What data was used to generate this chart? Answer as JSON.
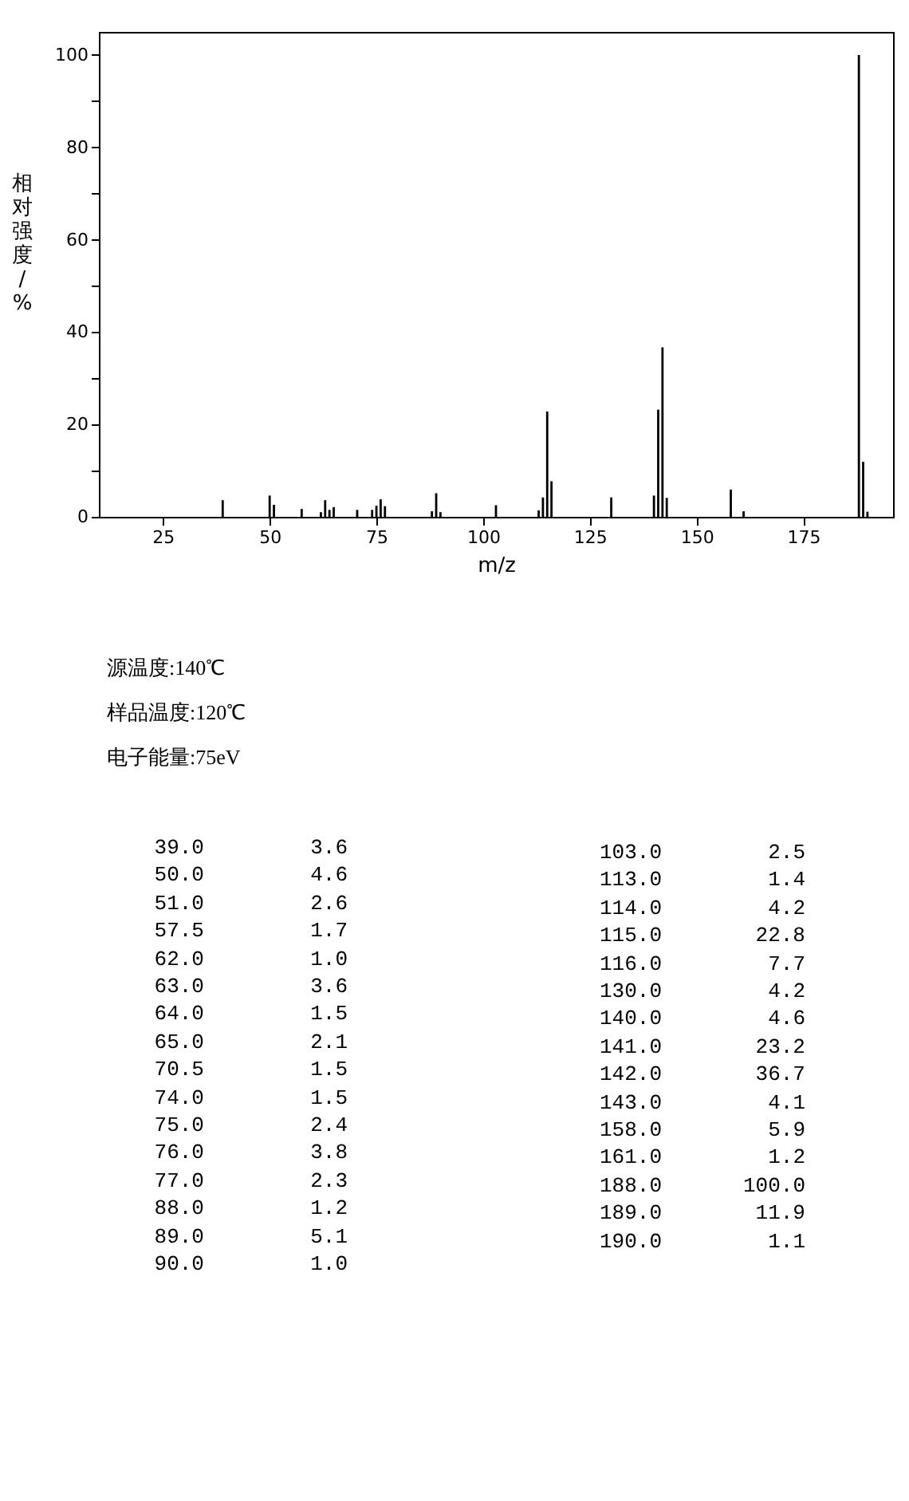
{
  "chart_data": [
    {
      "type": "bar",
      "xlabel": "m/z",
      "ylabel": "相对强度/%",
      "color": "#000000",
      "x": [
        39,
        50,
        51,
        57.5,
        62,
        63,
        64,
        65,
        70.5,
        74,
        75,
        76,
        77,
        88,
        89,
        90,
        103,
        113,
        114,
        115,
        116,
        130,
        140,
        141,
        142,
        143,
        158,
        161,
        188,
        189,
        190
      ],
      "values": [
        3.6,
        4.6,
        2.6,
        1.7,
        1.0,
        3.6,
        1.5,
        2.1,
        1.5,
        1.5,
        2.4,
        3.8,
        2.3,
        1.2,
        5.1,
        1.0,
        2.5,
        1.4,
        4.2,
        22.8,
        7.7,
        4.2,
        4.6,
        23.2,
        36.7,
        4.1,
        5.9,
        1.2,
        100.0,
        11.9,
        1.1
      ],
      "xlim": [
        10,
        196
      ],
      "xticks": [
        25,
        50,
        75,
        100,
        125,
        150,
        175
      ],
      "ylim": [
        0,
        105
      ],
      "yticks": [
        0,
        {
          "value": 10,
          "label": null
        },
        20,
        {
          "value": 30,
          "label": null
        },
        40,
        {
          "value": 50,
          "label": null
        },
        60,
        {
          "value": 70,
          "label": null
        },
        80,
        {
          "value": 90,
          "label": null
        },
        100
      ],
      "annotations": [
        "源温度:140℃",
        "样品温度:120℃",
        "电子能量:75eV"
      ]
    },
    {
      "type": "other",
      "categories": [
        "39.0",
        "50.0",
        "51.0",
        "57.5",
        "62.0",
        "63.0",
        "64.0",
        "65.0",
        "70.5",
        "74.0",
        "75.0",
        "76.0",
        "77.0",
        "88.0",
        "89.0",
        "90.0",
        "103.0",
        "113.0",
        "114.0",
        "115.0",
        "116.0",
        "130.0",
        "140.0",
        "141.0",
        "142.0",
        "143.0",
        "158.0",
        "161.0",
        "188.0",
        "189.0",
        "190.0"
      ],
      "value_labels": [
        "3.6",
        "4.6",
        "2.6",
        "1.7",
        "1.0",
        "3.6",
        "1.5",
        "2.1",
        "1.5",
        "1.5",
        "2.4",
        "3.8",
        "2.3",
        "1.2",
        "5.1",
        "1.0",
        "2.5",
        "1.4",
        "4.2",
        "22.8",
        "7.7",
        "4.2",
        "4.6",
        "23.2",
        "36.7",
        "4.1",
        "5.9",
        "1.2",
        "100.0",
        "11.9",
        "1.1"
      ]
    }
  ]
}
